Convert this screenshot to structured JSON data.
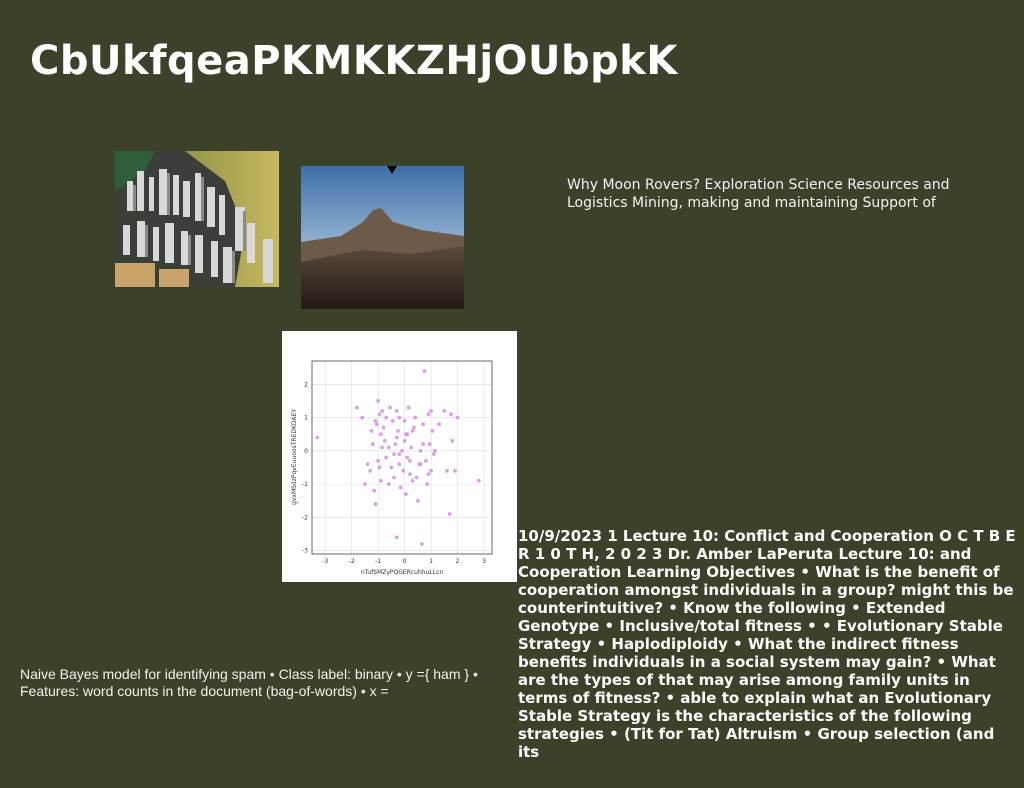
{
  "page": {
    "title": "CbUkfqeaPKMKKZHjOUbpkK"
  },
  "images": {
    "city": {
      "icon": "city-skyline-photo"
    },
    "mountain": {
      "icon": "mountain-landscape-photo"
    }
  },
  "texts": {
    "moon_rovers": "Why Moon Rovers? Exploration Science Resources and Logistics Mining, making and maintaining Support of",
    "naive_bayes": "Naive Bayes model for identifying spam • Class label: binary • y ={ ham } • Features: word counts in the document (bag-of-words) • x =",
    "lecture": "10/9/2023 1 Lecture 10: Conflict and Cooperation O C T B E R 1 0 T H, 2 0 2 3 Dr. Amber LaPeruta Lecture 10: and Cooperation Learning Objectives • What is the benefit of cooperation amongst individuals in a group? might this be counterintuitive? • Know the following • Extended Genotype • Inclusive/total fitness • • Evolutionary Stable Strategy • Haplodiploidy • What the indirect fitness benefits individuals in a social system may gain? • What are the types of that may arise among family units in terms of fitness? • able to explain what an Evolutionary Stable Strategy is the characteristics of the following strategies • (Tit for Tat) Altruism • Group selection (and its"
  },
  "chart_data": {
    "type": "scatter",
    "xlabel": "nTufSMZyPQGERcuhhuLLcn",
    "ylabel": "gvxMSdzPqvEuuoosTREDKDAEY",
    "xlim": [
      -3.5,
      3.3
    ],
    "ylim": [
      -3.1,
      2.7
    ],
    "xticks": [
      -3,
      -2,
      -1,
      0,
      1,
      2,
      3
    ],
    "yticks": [
      -3,
      -2,
      -1,
      0,
      1,
      2
    ],
    "grid": true,
    "color": "#d98be8",
    "x": [
      -3.3,
      -1.8,
      -1.6,
      -1.4,
      -1.3,
      -1.2,
      -1.15,
      -1.1,
      -1.05,
      -1.0,
      -1.0,
      -0.95,
      -0.9,
      -0.9,
      -0.85,
      -0.8,
      -0.75,
      -0.7,
      -0.7,
      -0.6,
      -0.55,
      -0.5,
      -0.45,
      -0.4,
      -0.4,
      -0.35,
      -0.3,
      -0.3,
      -0.25,
      -0.2,
      -0.2,
      -0.15,
      -0.1,
      -0.05,
      0.0,
      0.0,
      0.05,
      0.1,
      0.1,
      0.15,
      0.2,
      0.25,
      0.3,
      0.35,
      0.4,
      0.5,
      0.55,
      0.6,
      0.65,
      0.7,
      0.75,
      0.8,
      0.85,
      0.9,
      0.95,
      1.0,
      1.05,
      1.1,
      1.5,
      1.6,
      1.7,
      1.75,
      1.8,
      1.9,
      2.0,
      2.8,
      -1.1,
      -0.95,
      -0.3,
      0.9,
      -0.6,
      0.2,
      1.3,
      -1.25,
      0.45,
      -0.85,
      0.05,
      1.15,
      -0.2,
      0.7,
      1.0,
      -1.5,
      0.3,
      0.6
    ],
    "y": [
      0.4,
      1.3,
      1.0,
      -0.4,
      -0.6,
      0.2,
      -1.2,
      -1.6,
      0.8,
      1.5,
      -0.3,
      1.1,
      0.5,
      -0.9,
      1.2,
      0.7,
      0.3,
      -0.2,
      1.0,
      -1.0,
      1.3,
      -0.5,
      0.9,
      -0.1,
      -0.8,
      0.2,
      1.2,
      -2.6,
      0.6,
      -0.4,
      1.0,
      -1.1,
      0.0,
      -0.6,
      0.9,
      0.3,
      -1.3,
      0.5,
      -0.2,
      1.3,
      -0.7,
      0.1,
      -0.9,
      0.7,
      1.0,
      -1.5,
      -0.4,
      0.0,
      -2.8,
      0.8,
      2.4,
      -0.3,
      -1.0,
      1.1,
      0.2,
      -0.6,
      0.6,
      -0.1,
      1.2,
      -0.6,
      -1.9,
      1.1,
      0.3,
      -0.6,
      1.0,
      -0.9,
      0.9,
      -0.5,
      0.4,
      -0.7,
      0.1,
      -0.3,
      0.8,
      0.6,
      -0.8,
      0.1,
      0.5,
      0.0,
      -0.1,
      0.2,
      1.2,
      -1.0,
      0.6,
      -0.4
    ]
  }
}
